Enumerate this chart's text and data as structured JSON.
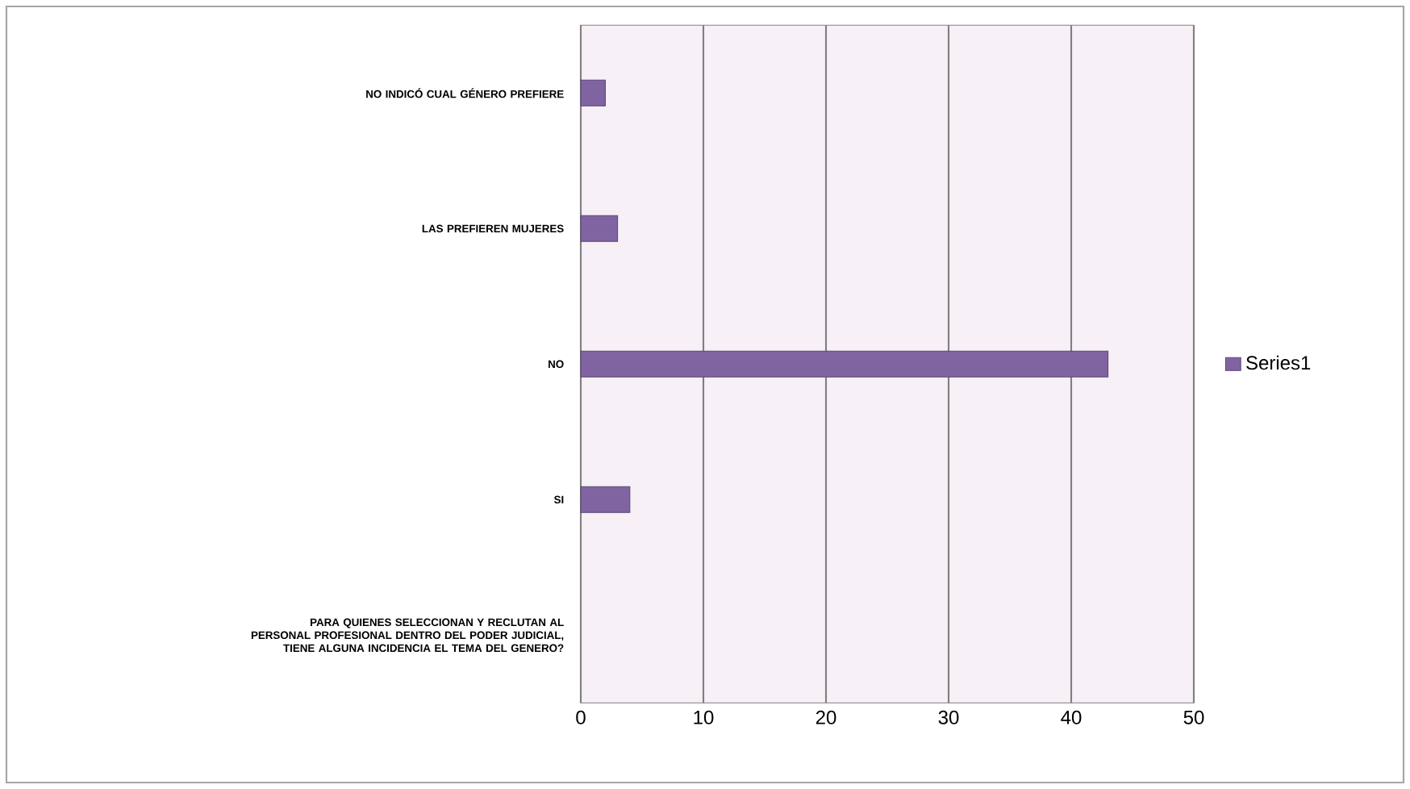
{
  "chart_data": {
    "type": "bar",
    "orientation": "horizontal",
    "categories": [
      "NO INDICÓ CUAL GÉNERO PREFIERE",
      "LAS PREFIEREN MUJERES",
      "NO",
      "SI",
      "PARA QUIENES SELECCIONAN Y RECLUTAN AL PERSONAL PROFESIONAL DENTRO DEL PODER JUDICIAL, TIENE ALGUNA INCIDENCIA EL TEMA DEL GENERO?"
    ],
    "series": [
      {
        "name": "Series1",
        "color": "#8064a2",
        "values": [
          2,
          3,
          43,
          4,
          null
        ]
      }
    ],
    "xlim": [
      0,
      50
    ],
    "xticks": [
      0,
      10,
      20,
      30,
      40,
      50
    ],
    "grid": "x",
    "legend": "right"
  }
}
